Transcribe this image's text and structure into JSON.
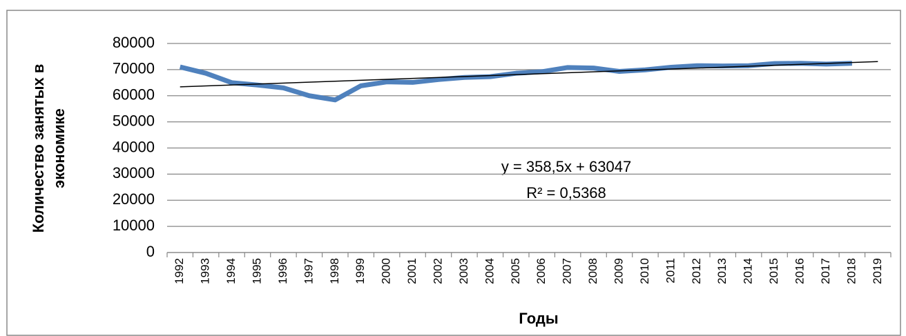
{
  "chart_data": {
    "type": "line",
    "ylabel": [
      "Количество занятых в",
      "экономике"
    ],
    "xlabel": "Годы",
    "categories": [
      "1992",
      "1993",
      "1994",
      "1995",
      "1996",
      "1997",
      "1998",
      "1999",
      "2000",
      "2001",
      "2002",
      "2003",
      "2004",
      "2005",
      "2006",
      "2007",
      "2008",
      "2009",
      "2010",
      "2011",
      "2012",
      "2013",
      "2014",
      "2015",
      "2016",
      "2017",
      "2018",
      "2019"
    ],
    "series": [
      {
        "color": "#4f81bd",
        "values": [
          71000,
          68600,
          65000,
          64100,
          63000,
          60000,
          58400,
          63800,
          65300,
          65100,
          66200,
          67000,
          67300,
          68600,
          69200,
          70800,
          70600,
          69300,
          69900,
          70900,
          71500,
          71400,
          71500,
          72300,
          72400,
          72100,
          72400,
          null
        ]
      }
    ],
    "trendline": {
      "equation": "y = 358,5x + 63047",
      "r2": "R² = 0,5368",
      "slope": 358.5,
      "intercept": 63047,
      "color": "#000000"
    },
    "ylim": [
      0,
      80000
    ],
    "yticks": [
      0,
      10000,
      20000,
      30000,
      40000,
      50000,
      60000,
      70000,
      80000
    ],
    "grid": true
  }
}
